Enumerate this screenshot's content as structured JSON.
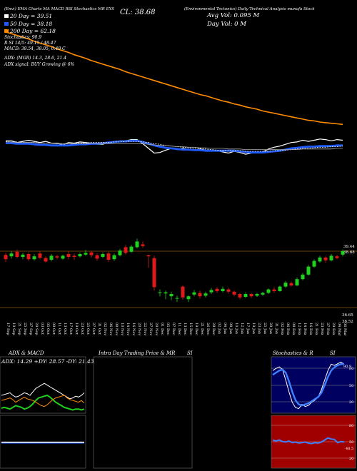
{
  "header": {
    "left": "(Envi) EMA Charts MA MACD RSI Stochastics MR EYS",
    "right": "(Environmental Tectonics) Daily Technical Analysis munafa Stock",
    "close_label": "CL: 38.68",
    "avg_vol": "Avg Vol: 0.095 M",
    "day_vol": "Day Vol: 0 M"
  },
  "ema_lines": [
    "20 Day = 39.51",
    "50 Day = 38.18",
    "200 Day = 62.18",
    "Stochastics: 90.9",
    "R SI 14/5: 49.15 / 48.47",
    "MACD: 38.54, 38.05, 0.49 C"
  ],
  "adx": {
    "line1": "ADX: (MGR) 14.3, 28.6, 21.4",
    "line2": "ADX signal: BUY Growing @ 6%"
  },
  "price_axis": {
    "top_labels": [
      "39.44",
      "38.68"
    ],
    "bottom_labels": [
      "36.65",
      "36.52"
    ]
  },
  "dates": [
    "17 Sep",
    "19 Sep",
    "21 Sep",
    "25 Sep",
    "27 Sep",
    "29 Sep",
    "03 Oct",
    "05 Oct",
    "09 Oct",
    "11 Oct",
    "13 Oct",
    "17 Oct",
    "19 Oct",
    "23 Oct",
    "25 Oct",
    "27 Oct",
    "31 Oct",
    "02 Nov",
    "06 Nov",
    "08 Nov",
    "10 Nov",
    "14 Nov",
    "16 Nov",
    "20 Nov",
    "22 Nov",
    "27 Nov",
    "29 Nov",
    "01 Dec",
    "05 Dec",
    "07 Dec",
    "11 Dec",
    "13 Dec",
    "15 Dec",
    "19 Dec",
    "21 Dec",
    "26 Dec",
    "28 Dec",
    "02 Jan",
    "04 Jan",
    "08 Jan",
    "10 Jan",
    "12 Jan",
    "17 Jan",
    "19 Jan",
    "23 Jan",
    "25 Jan",
    "29 Jan",
    "31 Jan",
    "02 Feb",
    "06 Feb",
    "08 Feb",
    "12 Feb",
    "14 Feb",
    "16 Feb",
    "21 Feb",
    "23 Feb",
    "27 Feb",
    "29 Feb",
    "04 Mar",
    "06 Mar"
  ],
  "panels": {
    "adx_macd_title": "ADX & MACD",
    "adx_values": "ADX: 14.29 +DY: 28.57 -DY: 21.43",
    "intraday_title": "Intra Day Trading Price & MR",
    "intraday_si": "SI",
    "stoch_title": "Stochastics & R",
    "stoch_si": "SI",
    "stoch_ticks": [
      "80",
      "50",
      "20"
    ],
    "stoch_value": "90.9",
    "rsi_ticks": [
      "80",
      "50",
      "20"
    ],
    "rsi_value": "48.5"
  },
  "colors": {
    "up": "#1fd01f",
    "down": "#e01a1a",
    "ema_fast": "#1e5bff",
    "ema_slow": "#ff8c00",
    "rsi_bg": "#a00000",
    "stoch_bg": "#000060"
  },
  "chart_data": [
    {
      "type": "line",
      "name": "main price panel",
      "series": [
        {
          "values": [
            41.6,
            41.6,
            41.3,
            41.5,
            41.7,
            41.5,
            41.3,
            41.5,
            41.2,
            41.2,
            40.9,
            41.3,
            41.2,
            41.4,
            41.3,
            41.2,
            41.0,
            41.0,
            41.3,
            41.5,
            41.6,
            41.6,
            41.8,
            41.8,
            41.1,
            40.3,
            39.5,
            39.6,
            40.0,
            40.3,
            40.1,
            40.3,
            40.1,
            40.0,
            40.2,
            40.0,
            39.8,
            39.9,
            39.7,
            39.5,
            39.8,
            39.6,
            39.3,
            39.5,
            39.6,
            39.7,
            40.2,
            40.5,
            40.7,
            41.0,
            41.3,
            41.4,
            41.7,
            41.5,
            41.7,
            41.9,
            41.8,
            41.6,
            41.8,
            41.7
          ]
        },
        {
          "values": [
            41.2,
            41.2,
            41.1,
            41.1,
            41.1,
            41.0,
            40.9,
            40.9,
            40.8,
            40.8,
            40.8,
            40.8,
            40.9,
            41.0,
            41.0,
            41.1,
            41.1,
            41.2,
            41.3,
            41.4,
            41.5,
            41.5,
            41.6,
            41.6,
            41.4,
            41.1,
            40.8,
            40.6,
            40.4,
            40.3,
            40.2,
            40.1,
            40.1,
            40.0,
            40.0,
            39.9,
            39.9,
            39.9,
            39.9,
            39.9,
            39.9,
            39.8,
            39.7,
            39.6,
            39.6,
            39.6,
            39.7,
            39.8,
            39.9,
            40.1,
            40.3,
            40.4,
            40.5,
            40.6,
            40.6,
            40.7,
            40.7,
            40.7,
            40.8,
            40.8
          ]
        },
        {
          "values": [
            41.5,
            41.4,
            41.4,
            41.3,
            41.3,
            41.3,
            41.2,
            41.2,
            41.2,
            41.2,
            41.1,
            41.1,
            41.2,
            41.2,
            41.2,
            41.3,
            41.3,
            41.3,
            41.3,
            41.4,
            41.4,
            41.5,
            41.5,
            41.5,
            41.4,
            41.3,
            41.1,
            41.0,
            40.8,
            40.7,
            40.6,
            40.5,
            40.4,
            40.3,
            40.3,
            40.2,
            40.1,
            40.0,
            40.0,
            39.9,
            39.9,
            39.9,
            39.8,
            39.8,
            39.8,
            39.8,
            39.8,
            39.9,
            39.9,
            40.0,
            40.1,
            40.2,
            40.3,
            40.3,
            40.4,
            40.5,
            40.5,
            40.6,
            40.6,
            40.7
          ]
        },
        {
          "values": [
            41.4,
            41.4,
            41.3,
            41.3,
            41.3,
            41.3,
            41.2,
            41.2,
            41.2,
            41.1,
            41.1,
            41.1,
            41.1,
            41.1,
            41.1,
            41.1,
            41.1,
            41.1,
            41.1,
            41.1,
            41.1,
            41.1,
            41.1,
            41.1,
            41.1,
            41.0,
            40.9,
            40.8,
            40.8,
            40.7,
            40.6,
            40.6,
            40.5,
            40.5,
            40.4,
            40.4,
            40.3,
            40.3,
            40.3,
            40.2,
            40.2,
            40.2,
            40.1,
            40.1,
            40.1,
            40.1,
            40.1,
            40.1,
            40.1,
            40.1,
            40.1,
            40.1,
            40.2,
            40.2,
            40.2,
            40.2,
            40.2,
            40.2,
            40.3,
            40.3
          ]
        },
        {
          "values": [
            60.2,
            59.9,
            59.6,
            59.3,
            59.0,
            58.6,
            58.3,
            58.0,
            57.7,
            57.3,
            57.0,
            56.7,
            56.3,
            56.0,
            55.7,
            55.3,
            55.0,
            54.7,
            54.4,
            54.1,
            53.8,
            53.4,
            53.1,
            52.8,
            52.5,
            52.2,
            51.9,
            51.6,
            51.3,
            51.0,
            50.7,
            50.4,
            50.1,
            49.8,
            49.5,
            49.3,
            49.0,
            48.7,
            48.4,
            48.2,
            47.9,
            47.7,
            47.4,
            47.2,
            47.0,
            46.7,
            46.5,
            46.3,
            46.1,
            45.9,
            45.7,
            45.5,
            45.3,
            45.1,
            45.0,
            44.8,
            44.7,
            44.6,
            44.5,
            44.4
          ]
        }
      ],
      "candles": [
        {
          "o": 38.55,
          "c": 38.4,
          "h": 38.62,
          "l": 38.3
        },
        {
          "o": 38.5,
          "c": 38.6,
          "h": 38.68,
          "l": 38.42
        },
        {
          "o": 38.66,
          "c": 38.48,
          "h": 38.74,
          "l": 38.44
        },
        {
          "o": 38.48,
          "c": 38.56,
          "h": 38.62,
          "l": 38.4
        },
        {
          "o": 38.58,
          "c": 38.4,
          "h": 38.64,
          "l": 38.34
        },
        {
          "o": 38.4,
          "c": 38.5,
          "h": 38.58,
          "l": 38.35
        },
        {
          "o": 38.6,
          "c": 38.45,
          "h": 38.68,
          "l": 38.4
        },
        {
          "o": 38.44,
          "c": 38.32,
          "h": 38.5,
          "l": 38.28
        },
        {
          "o": 38.38,
          "c": 38.52,
          "h": 38.58,
          "l": 38.32
        },
        {
          "o": 38.5,
          "c": 38.46,
          "h": 38.56,
          "l": 38.4
        },
        {
          "o": 38.42,
          "c": 38.52,
          "h": 38.56,
          "l": 38.38
        },
        {
          "o": 38.58,
          "c": 38.48,
          "h": 38.68,
          "l": 38.4
        },
        {
          "o": 38.52,
          "c": 38.48,
          "h": 38.6,
          "l": 38.38
        },
        {
          "o": 38.5,
          "c": 38.58,
          "h": 38.64,
          "l": 38.46
        },
        {
          "o": 38.56,
          "c": 38.62,
          "h": 38.72,
          "l": 38.52
        },
        {
          "o": 38.64,
          "c": 38.54,
          "h": 38.7,
          "l": 38.46
        },
        {
          "o": 38.54,
          "c": 38.42,
          "h": 38.6,
          "l": 38.34
        },
        {
          "o": 38.48,
          "c": 38.58,
          "h": 38.64,
          "l": 38.44
        },
        {
          "o": 38.6,
          "c": 38.38,
          "h": 38.66,
          "l": 38.3
        },
        {
          "o": 38.4,
          "c": 38.54,
          "h": 38.6,
          "l": 38.34
        },
        {
          "o": 38.54,
          "c": 38.7,
          "h": 38.76,
          "l": 38.5
        },
        {
          "o": 38.82,
          "c": 38.62,
          "h": 38.9,
          "l": 38.56
        },
        {
          "o": 38.66,
          "c": 38.84,
          "h": 38.9,
          "l": 38.62
        },
        {
          "o": 38.82,
          "c": 39.02,
          "h": 39.12,
          "l": 38.78
        },
        {
          "o": 38.92,
          "c": 38.86,
          "h": 39.02,
          "l": 38.8
        },
        {
          "o": 38.54,
          "c": 38.5,
          "h": 38.56,
          "l": 38.1
        },
        {
          "o": 38.44,
          "c": 37.42,
          "h": 38.52,
          "l": 37.3
        },
        {
          "o": 37.24,
          "c": 37.24,
          "h": 37.34,
          "l": 37.1
        },
        {
          "o": 37.2,
          "c": 37.24,
          "h": 37.3,
          "l": 37.0
        },
        {
          "o": 37.1,
          "c": 37.18,
          "h": 37.26,
          "l": 36.96
        },
        {
          "o": 37.04,
          "c": 37.04,
          "h": 37.12,
          "l": 36.9
        },
        {
          "o": 37.44,
          "c": 37.06,
          "h": 37.48,
          "l": 36.98
        },
        {
          "o": 37.0,
          "c": 37.1,
          "h": 37.14,
          "l": 36.9
        },
        {
          "o": 37.16,
          "c": 37.24,
          "h": 37.32,
          "l": 37.1
        },
        {
          "o": 37.22,
          "c": 37.1,
          "h": 37.3,
          "l": 37.02
        },
        {
          "o": 37.12,
          "c": 37.2,
          "h": 37.26,
          "l": 37.06
        },
        {
          "o": 37.24,
          "c": 37.32,
          "h": 37.4,
          "l": 37.18
        },
        {
          "o": 37.36,
          "c": 37.28,
          "h": 37.42,
          "l": 37.22
        },
        {
          "o": 37.28,
          "c": 37.36,
          "h": 37.44,
          "l": 37.24
        },
        {
          "o": 37.34,
          "c": 37.26,
          "h": 37.4,
          "l": 37.2
        },
        {
          "o": 37.26,
          "c": 37.16,
          "h": 37.3,
          "l": 37.1
        },
        {
          "o": 37.18,
          "c": 37.06,
          "h": 37.22,
          "l": 37.0
        },
        {
          "o": 37.08,
          "c": 37.18,
          "h": 37.24,
          "l": 37.04
        },
        {
          "o": 37.18,
          "c": 37.1,
          "h": 37.22,
          "l": 37.04
        },
        {
          "o": 37.12,
          "c": 37.18,
          "h": 37.22,
          "l": 37.08
        },
        {
          "o": 37.16,
          "c": 37.22,
          "h": 37.26,
          "l": 37.12
        },
        {
          "o": 37.22,
          "c": 37.34,
          "h": 37.38,
          "l": 37.18
        },
        {
          "o": 37.34,
          "c": 37.28,
          "h": 37.42,
          "l": 37.22
        },
        {
          "o": 37.28,
          "c": 37.44,
          "h": 37.48,
          "l": 37.26
        },
        {
          "o": 37.44,
          "c": 37.58,
          "h": 37.64,
          "l": 37.4
        },
        {
          "o": 37.56,
          "c": 37.48,
          "h": 37.62,
          "l": 37.44
        },
        {
          "o": 37.48,
          "c": 37.7,
          "h": 37.76,
          "l": 37.46
        },
        {
          "o": 37.7,
          "c": 37.86,
          "h": 37.92,
          "l": 37.66
        },
        {
          "o": 37.86,
          "c": 38.14,
          "h": 38.2,
          "l": 37.82
        },
        {
          "o": 38.14,
          "c": 38.34,
          "h": 38.4,
          "l": 38.1
        },
        {
          "o": 38.32,
          "c": 38.46,
          "h": 38.52,
          "l": 38.28
        },
        {
          "o": 38.46,
          "c": 38.36,
          "h": 38.5,
          "l": 38.28
        },
        {
          "o": 38.36,
          "c": 38.52,
          "h": 38.58,
          "l": 38.32
        },
        {
          "o": 38.5,
          "c": 38.44,
          "h": 38.56,
          "l": 38.4
        },
        {
          "o": 38.56,
          "c": 38.68,
          "h": 38.74,
          "l": 38.5
        }
      ]
    },
    {
      "type": "line",
      "name": "adx",
      "series": [
        {
          "values": [
            30,
            31,
            32,
            33,
            30,
            28,
            29,
            31,
            33,
            32,
            30,
            34,
            38,
            40,
            42,
            44,
            42,
            40,
            38,
            36,
            34,
            32,
            30,
            28,
            26,
            27,
            29,
            28,
            30,
            33
          ]
        },
        {
          "values": [
            15,
            16,
            15,
            14,
            16,
            18,
            17,
            16,
            14,
            15,
            17,
            20,
            24,
            27,
            28,
            29,
            30,
            28,
            25,
            22,
            20,
            18,
            16,
            15,
            14,
            13,
            14,
            14,
            13,
            14
          ]
        },
        {
          "values": [
            24,
            25,
            26,
            27,
            25,
            22,
            24,
            26,
            28,
            26,
            25,
            24,
            22,
            20,
            18,
            17,
            19,
            22,
            25,
            27,
            28,
            29,
            30,
            27,
            25,
            24,
            23,
            22,
            24,
            21
          ]
        }
      ]
    },
    {
      "type": "line",
      "name": "stochastics",
      "series": [
        {
          "values": [
            78,
            82,
            85,
            80,
            60,
            38,
            18,
            8,
            6,
            14,
            10,
            12,
            18,
            22,
            28,
            42,
            60,
            78,
            90,
            88,
            91,
            94,
            90
          ]
        },
        {
          "values": [
            70,
            74,
            78,
            80,
            74,
            58,
            38,
            22,
            14,
            12,
            14,
            16,
            20,
            24,
            28,
            36,
            50,
            66,
            78,
            84,
            88,
            90,
            91
          ]
        }
      ]
    },
    {
      "type": "line",
      "name": "rsi",
      "series": [
        {
          "values": [
            52,
            50,
            52,
            49,
            48,
            50,
            47,
            48,
            46,
            47,
            48,
            46,
            45,
            47,
            46,
            48,
            52,
            56,
            54,
            53,
            47,
            49,
            48
          ]
        }
      ]
    }
  ]
}
